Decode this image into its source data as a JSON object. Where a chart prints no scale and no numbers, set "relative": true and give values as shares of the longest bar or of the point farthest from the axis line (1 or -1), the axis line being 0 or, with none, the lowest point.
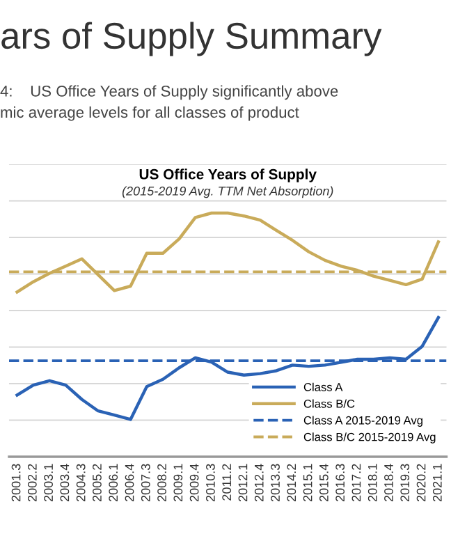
{
  "chart_data": {
    "type": "line",
    "relative": true,
    "title": "US Office Years of Supply",
    "subtitle": "(2015-2019 Avg. TTM Net Absorption)",
    "annotations": [
      "ars of Supply Summary",
      "4:    US Office Years of Supply significantly above\nmic average levels for all classes of product"
    ],
    "categories": [
      "2001.3",
      "2002.2",
      "2003.1",
      "2003.4",
      "2004.3",
      "2005.2",
      "2006.1",
      "2006.4",
      "2007.3",
      "2008.2",
      "2009.1",
      "2009.4",
      "2010.3",
      "2011.2",
      "2012.1",
      "2012.4",
      "2013.3",
      "2014.2",
      "2015.1",
      "2015.4",
      "2016.3",
      "2017.2",
      "2018.1",
      "2018.4",
      "2019.3",
      "2020.2",
      "2021.1"
    ],
    "series": [
      {
        "name": "Class A",
        "color": "#2a62b5",
        "values": [
          0.253,
          0.294,
          0.312,
          0.294,
          0.235,
          0.188,
          0.171,
          0.153,
          0.288,
          0.318,
          0.365,
          0.406,
          0.388,
          0.347,
          0.335,
          0.341,
          0.353,
          0.376,
          0.371,
          0.376,
          0.388,
          0.4,
          0.4,
          0.406,
          0.4,
          0.453,
          0.571
        ]
      },
      {
        "name": "Class B/C",
        "color": "#c9ab5a",
        "values": [
          0.676,
          0.718,
          0.753,
          0.782,
          0.812,
          0.747,
          0.682,
          0.7,
          0.835,
          0.835,
          0.894,
          0.982,
          1.0,
          1.0,
          0.988,
          0.971,
          0.929,
          0.888,
          0.841,
          0.806,
          0.782,
          0.765,
          0.741,
          0.724,
          0.706,
          0.729,
          0.882
        ]
      }
    ],
    "ref_lines": [
      {
        "axis": "y",
        "value": 0.394,
        "label": "Class A 2015-2019 Avg",
        "color": "#2a62b5",
        "line_style": "dashed"
      },
      {
        "axis": "y",
        "value": 0.759,
        "label": "Class B/C 2015-2019 Avg",
        "color": "#c9ab5a",
        "line_style": "dashed"
      }
    ],
    "grid": "y",
    "legend": "bottom right",
    "line_style": "solid",
    "marker": "none"
  }
}
